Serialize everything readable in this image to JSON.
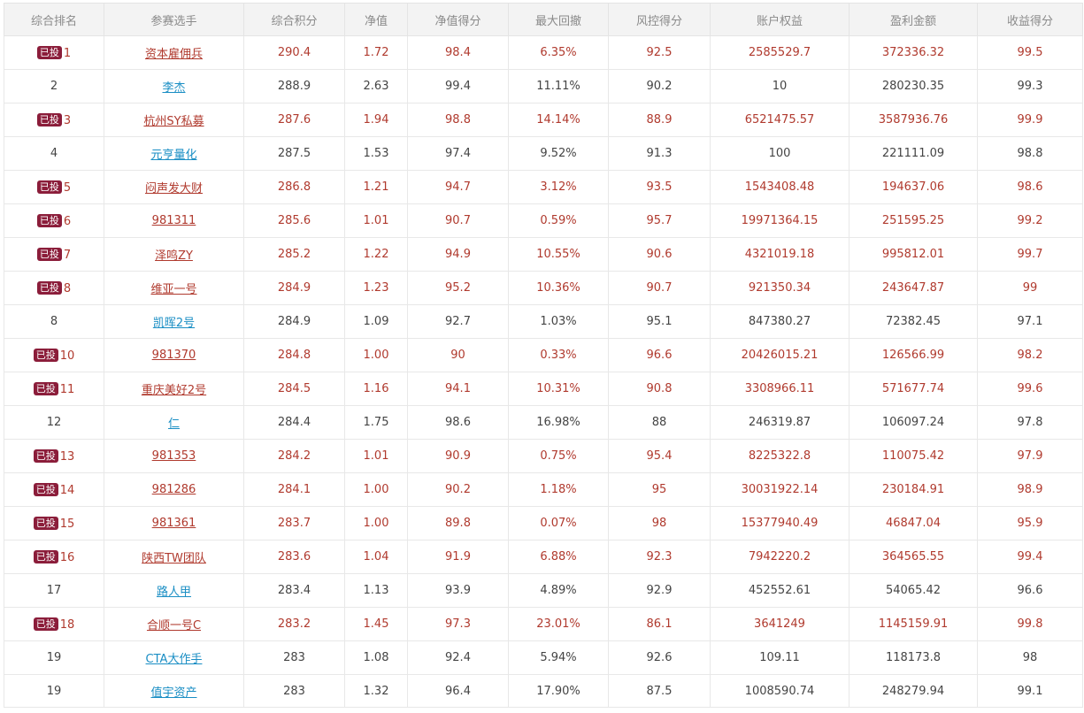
{
  "colors": {
    "highlight_text": "#b03a2e",
    "normal_text": "#444444",
    "link_blue": "#1a8ec4",
    "badge_bg": "#8b1d3a",
    "header_bg": "#f3f3f3"
  },
  "headers": [
    "综合排名",
    "参赛选手",
    "综合积分",
    "净值",
    "净值得分",
    "最大回撤",
    "风控得分",
    "账户权益",
    "盈利金额",
    "收益得分"
  ],
  "rows": [
    {
      "badge": "已投",
      "rank": "1",
      "name": "资本雇佣兵",
      "score": "290.4",
      "nav": "1.72",
      "nav_score": "98.4",
      "drawdown": "6.35%",
      "risk_score": "92.5",
      "equity": "2585529.7",
      "profit": "372336.32",
      "return_score": "99.5",
      "hl": true
    },
    {
      "badge": "",
      "rank": "2",
      "name": "李杰",
      "score": "288.9",
      "nav": "2.63",
      "nav_score": "99.4",
      "drawdown": "11.11%",
      "risk_score": "90.2",
      "equity": "10",
      "profit": "280230.35",
      "return_score": "99.3",
      "hl": false
    },
    {
      "badge": "已投",
      "rank": "3",
      "name": "杭州SY私募",
      "score": "287.6",
      "nav": "1.94",
      "nav_score": "98.8",
      "drawdown": "14.14%",
      "risk_score": "88.9",
      "equity": "6521475.57",
      "profit": "3587936.76",
      "return_score": "99.9",
      "hl": true
    },
    {
      "badge": "",
      "rank": "4",
      "name": "元亨量化",
      "score": "287.5",
      "nav": "1.53",
      "nav_score": "97.4",
      "drawdown": "9.52%",
      "risk_score": "91.3",
      "equity": "100",
      "profit": "221111.09",
      "return_score": "98.8",
      "hl": false
    },
    {
      "badge": "已投",
      "rank": "5",
      "name": "闷声发大财",
      "score": "286.8",
      "nav": "1.21",
      "nav_score": "94.7",
      "drawdown": "3.12%",
      "risk_score": "93.5",
      "equity": "1543408.48",
      "profit": "194637.06",
      "return_score": "98.6",
      "hl": true
    },
    {
      "badge": "已投",
      "rank": "6",
      "name": "981311",
      "score": "285.6",
      "nav": "1.01",
      "nav_score": "90.7",
      "drawdown": "0.59%",
      "risk_score": "95.7",
      "equity": "19971364.15",
      "profit": "251595.25",
      "return_score": "99.2",
      "hl": true
    },
    {
      "badge": "已投",
      "rank": "7",
      "name": "泽鸣ZY",
      "score": "285.2",
      "nav": "1.22",
      "nav_score": "94.9",
      "drawdown": "10.55%",
      "risk_score": "90.6",
      "equity": "4321019.18",
      "profit": "995812.01",
      "return_score": "99.7",
      "hl": true
    },
    {
      "badge": "已投",
      "rank": "8",
      "name": "维亚一号",
      "score": "284.9",
      "nav": "1.23",
      "nav_score": "95.2",
      "drawdown": "10.36%",
      "risk_score": "90.7",
      "equity": "921350.34",
      "profit": "243647.87",
      "return_score": "99",
      "hl": true
    },
    {
      "badge": "",
      "rank": "8",
      "name": "凯晖2号",
      "score": "284.9",
      "nav": "1.09",
      "nav_score": "92.7",
      "drawdown": "1.03%",
      "risk_score": "95.1",
      "equity": "847380.27",
      "profit": "72382.45",
      "return_score": "97.1",
      "hl": false
    },
    {
      "badge": "已投",
      "rank": "10",
      "name": "981370",
      "score": "284.8",
      "nav": "1.00",
      "nav_score": "90",
      "drawdown": "0.33%",
      "risk_score": "96.6",
      "equity": "20426015.21",
      "profit": "126566.99",
      "return_score": "98.2",
      "hl": true
    },
    {
      "badge": "已投",
      "rank": "11",
      "name": "重庆美好2号",
      "score": "284.5",
      "nav": "1.16",
      "nav_score": "94.1",
      "drawdown": "10.31%",
      "risk_score": "90.8",
      "equity": "3308966.11",
      "profit": "571677.74",
      "return_score": "99.6",
      "hl": true
    },
    {
      "badge": "",
      "rank": "12",
      "name": "仁",
      "score": "284.4",
      "nav": "1.75",
      "nav_score": "98.6",
      "drawdown": "16.98%",
      "risk_score": "88",
      "equity": "246319.87",
      "profit": "106097.24",
      "return_score": "97.8",
      "hl": false
    },
    {
      "badge": "已投",
      "rank": "13",
      "name": "981353",
      "score": "284.2",
      "nav": "1.01",
      "nav_score": "90.9",
      "drawdown": "0.75%",
      "risk_score": "95.4",
      "equity": "8225322.8",
      "profit": "110075.42",
      "return_score": "97.9",
      "hl": true
    },
    {
      "badge": "已投",
      "rank": "14",
      "name": "981286",
      "score": "284.1",
      "nav": "1.00",
      "nav_score": "90.2",
      "drawdown": "1.18%",
      "risk_score": "95",
      "equity": "30031922.14",
      "profit": "230184.91",
      "return_score": "98.9",
      "hl": true
    },
    {
      "badge": "已投",
      "rank": "15",
      "name": "981361",
      "score": "283.7",
      "nav": "1.00",
      "nav_score": "89.8",
      "drawdown": "0.07%",
      "risk_score": "98",
      "equity": "15377940.49",
      "profit": "46847.04",
      "return_score": "95.9",
      "hl": true
    },
    {
      "badge": "已投",
      "rank": "16",
      "name": "陕西TW团队",
      "score": "283.6",
      "nav": "1.04",
      "nav_score": "91.9",
      "drawdown": "6.88%",
      "risk_score": "92.3",
      "equity": "7942220.2",
      "profit": "364565.55",
      "return_score": "99.4",
      "hl": true
    },
    {
      "badge": "",
      "rank": "17",
      "name": "路人甲",
      "score": "283.4",
      "nav": "1.13",
      "nav_score": "93.9",
      "drawdown": "4.89%",
      "risk_score": "92.9",
      "equity": "452552.61",
      "profit": "54065.42",
      "return_score": "96.6",
      "hl": false
    },
    {
      "badge": "已投",
      "rank": "18",
      "name": "合顺一号C",
      "score": "283.2",
      "nav": "1.45",
      "nav_score": "97.3",
      "drawdown": "23.01%",
      "risk_score": "86.1",
      "equity": "3641249",
      "profit": "1145159.91",
      "return_score": "99.8",
      "hl": true
    },
    {
      "badge": "",
      "rank": "19",
      "name": "CTA大作手",
      "score": "283",
      "nav": "1.08",
      "nav_score": "92.4",
      "drawdown": "5.94%",
      "risk_score": "92.6",
      "equity": "109.11",
      "profit": "118173.8",
      "return_score": "98",
      "hl": false
    },
    {
      "badge": "",
      "rank": "19",
      "name": "值宇资产",
      "score": "283",
      "nav": "1.32",
      "nav_score": "96.4",
      "drawdown": "17.90%",
      "risk_score": "87.5",
      "equity": "1008590.74",
      "profit": "248279.94",
      "return_score": "99.1",
      "hl": false
    }
  ]
}
